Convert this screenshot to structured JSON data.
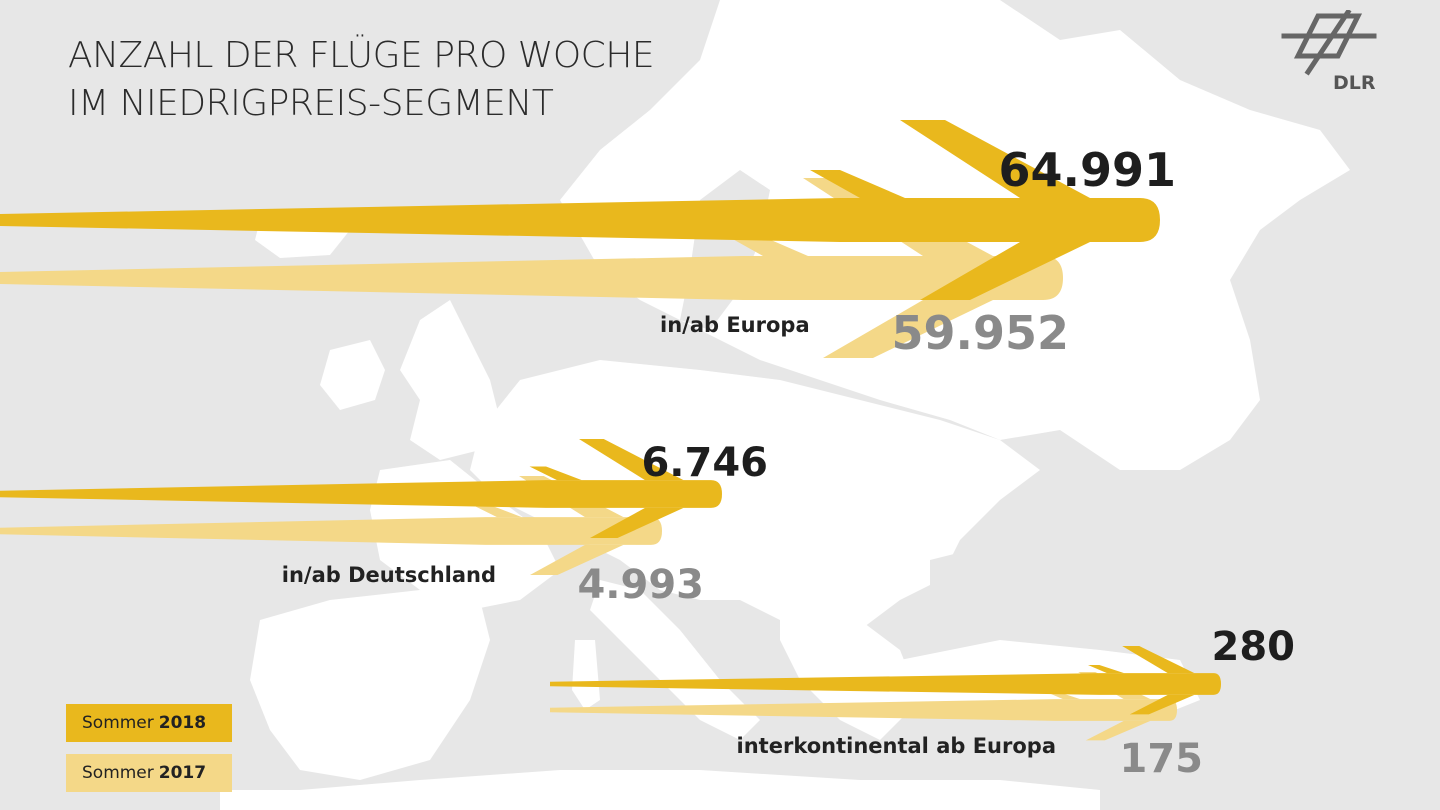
{
  "title": {
    "line1": "ANZAHL DER FLÜGE PRO WOCHE",
    "line2": "IM NIEDRIGPREIS-SEGMENT"
  },
  "logo": {
    "text": "DLR",
    "icon": "dlr-logo-icon"
  },
  "colors": {
    "series_2018": "#e9b81d",
    "series_2017": "#f4d888",
    "background": "#e7e7e7",
    "map_land": "#ffffff",
    "value_2018": "#1e1e1e",
    "value_2017": "#8a8a8a"
  },
  "legend": [
    {
      "prefix": "Sommer",
      "year": "2018"
    },
    {
      "prefix": "Sommer",
      "year": "2017"
    }
  ],
  "chart_data": {
    "type": "bar",
    "orientation": "horizontal",
    "title": "ANZAHL DER FLÜGE PRO WOCHE IM NIEDRIGPREIS-SEGMENT",
    "categories": [
      "in/ab Europa",
      "in/ab Deutschland",
      "interkontinental ab Europa"
    ],
    "series": [
      {
        "name": "Sommer 2018",
        "values": [
          64991,
          6746,
          280
        ],
        "labels": [
          "64.991",
          "6.746",
          "280"
        ]
      },
      {
        "name": "Sommer 2017",
        "values": [
          59952,
          4993,
          175
        ],
        "labels": [
          "59.952",
          "4.993",
          "175"
        ]
      }
    ],
    "legend_position": "bottom-left",
    "grid": false
  }
}
